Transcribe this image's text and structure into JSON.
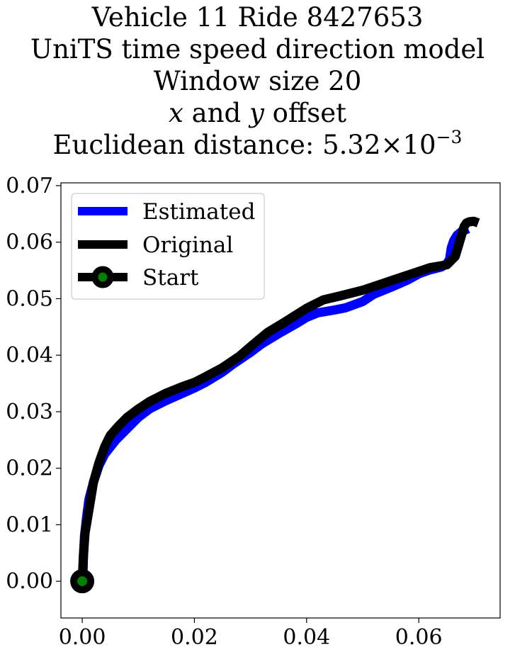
{
  "chart_data": {
    "type": "line",
    "title_lines": {
      "line1": "Vehicle 11 Ride 8427653",
      "line2": "UniTS time speed direction model",
      "line3": "Window size 20",
      "line4_x": "x",
      "line4_and": " and ",
      "line4_y": "y",
      "line4_rest": " offset",
      "line5_prefix": "Euclidean distance: 5.32",
      "line5_times": "×",
      "line5_base": "10",
      "line5_exp": "−3"
    },
    "xlabel": "",
    "ylabel": "",
    "xlim": [
      -0.0038,
      0.0745
    ],
    "ylim": [
      -0.0065,
      0.0705
    ],
    "x_ticks": [
      0.0,
      0.02,
      0.04,
      0.06
    ],
    "x_tick_labels": [
      "0.00",
      "0.02",
      "0.04",
      "0.06"
    ],
    "y_ticks": [
      0.0,
      0.01,
      0.02,
      0.03,
      0.04,
      0.05,
      0.06,
      0.07
    ],
    "y_tick_labels": [
      "0.00",
      "0.01",
      "0.02",
      "0.03",
      "0.04",
      "0.05",
      "0.06",
      "0.07"
    ],
    "grid": false,
    "legend_position": "top-left",
    "series": [
      {
        "name": "Estimated",
        "color": "#0000ff",
        "x": [
          0.0001,
          0.0002,
          0.0004,
          0.0008,
          0.0012,
          0.002,
          0.003,
          0.004,
          0.006,
          0.008,
          0.01,
          0.012,
          0.015,
          0.018,
          0.02,
          0.022,
          0.025,
          0.027,
          0.03,
          0.032,
          0.035,
          0.038,
          0.04,
          0.042,
          0.045,
          0.047,
          0.05,
          0.052,
          0.055,
          0.058,
          0.06,
          0.062,
          0.064,
          0.065,
          0.0655,
          0.0658,
          0.0662,
          0.0668,
          0.0675,
          0.0688
        ],
        "y": [
          0.0,
          0.004,
          0.008,
          0.0115,
          0.0145,
          0.0175,
          0.0205,
          0.0225,
          0.025,
          0.027,
          0.029,
          0.0305,
          0.032,
          0.0333,
          0.0342,
          0.0352,
          0.037,
          0.0385,
          0.0405,
          0.042,
          0.0438,
          0.0455,
          0.0467,
          0.0475,
          0.048,
          0.0484,
          0.0495,
          0.0508,
          0.052,
          0.0533,
          0.0544,
          0.0551,
          0.0556,
          0.0562,
          0.057,
          0.059,
          0.0602,
          0.0612,
          0.0618,
          0.0624
        ]
      },
      {
        "name": "Original",
        "color": "#000000",
        "x": [
          0.0,
          0.0002,
          0.0005,
          0.001,
          0.0015,
          0.002,
          0.003,
          0.004,
          0.005,
          0.0065,
          0.008,
          0.01,
          0.012,
          0.015,
          0.018,
          0.02,
          0.022,
          0.025,
          0.028,
          0.03,
          0.033,
          0.036,
          0.04,
          0.043,
          0.046,
          0.05,
          0.053,
          0.056,
          0.059,
          0.062,
          0.065,
          0.0665,
          0.0672,
          0.0677,
          0.0681,
          0.0685,
          0.069,
          0.0698,
          0.0706
        ],
        "y": [
          0.0,
          0.0045,
          0.0085,
          0.0115,
          0.0145,
          0.0175,
          0.021,
          0.0238,
          0.0258,
          0.0275,
          0.029,
          0.0305,
          0.0318,
          0.0333,
          0.0345,
          0.0352,
          0.0362,
          0.0378,
          0.0398,
          0.0415,
          0.044,
          0.0458,
          0.0483,
          0.0498,
          0.0505,
          0.0515,
          0.0525,
          0.0535,
          0.0545,
          0.0555,
          0.056,
          0.0575,
          0.0598,
          0.0615,
          0.0628,
          0.0634,
          0.0636,
          0.0637,
          0.0634
        ]
      }
    ],
    "start_marker": {
      "name": "Start",
      "x": 0.0,
      "y": 0.0,
      "edge_color": "#000000",
      "face_color": "#008000"
    }
  }
}
